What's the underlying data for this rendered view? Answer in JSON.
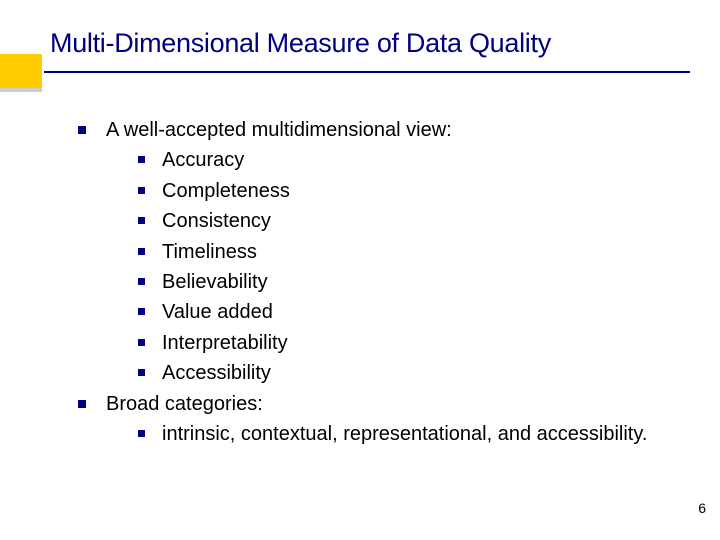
{
  "title": "Multi-Dimensional Measure of Data Quality",
  "accent_color": "#ffcc00",
  "accent_shadow_color": "#cccccc",
  "title_color": "#000080",
  "marker_color": "#000080",
  "text_color": "#000000",
  "background_color": "#ffffff",
  "title_fontsize": 27,
  "body_fontsize": 20,
  "bullets": [
    {
      "level": 1,
      "text": "A well-accepted multidimensional view:"
    },
    {
      "level": 2,
      "text": "Accuracy"
    },
    {
      "level": 2,
      "text": "Completeness"
    },
    {
      "level": 2,
      "text": "Consistency"
    },
    {
      "level": 2,
      "text": "Timeliness"
    },
    {
      "level": 2,
      "text": "Believability"
    },
    {
      "level": 2,
      "text": "Value added"
    },
    {
      "level": 2,
      "text": "Interpretability"
    },
    {
      "level": 2,
      "text": "Accessibility"
    },
    {
      "level": 1,
      "text": "Broad categories:"
    },
    {
      "level": 2,
      "text": "intrinsic, contextual, representational, and accessibility."
    }
  ],
  "page_number": "6"
}
